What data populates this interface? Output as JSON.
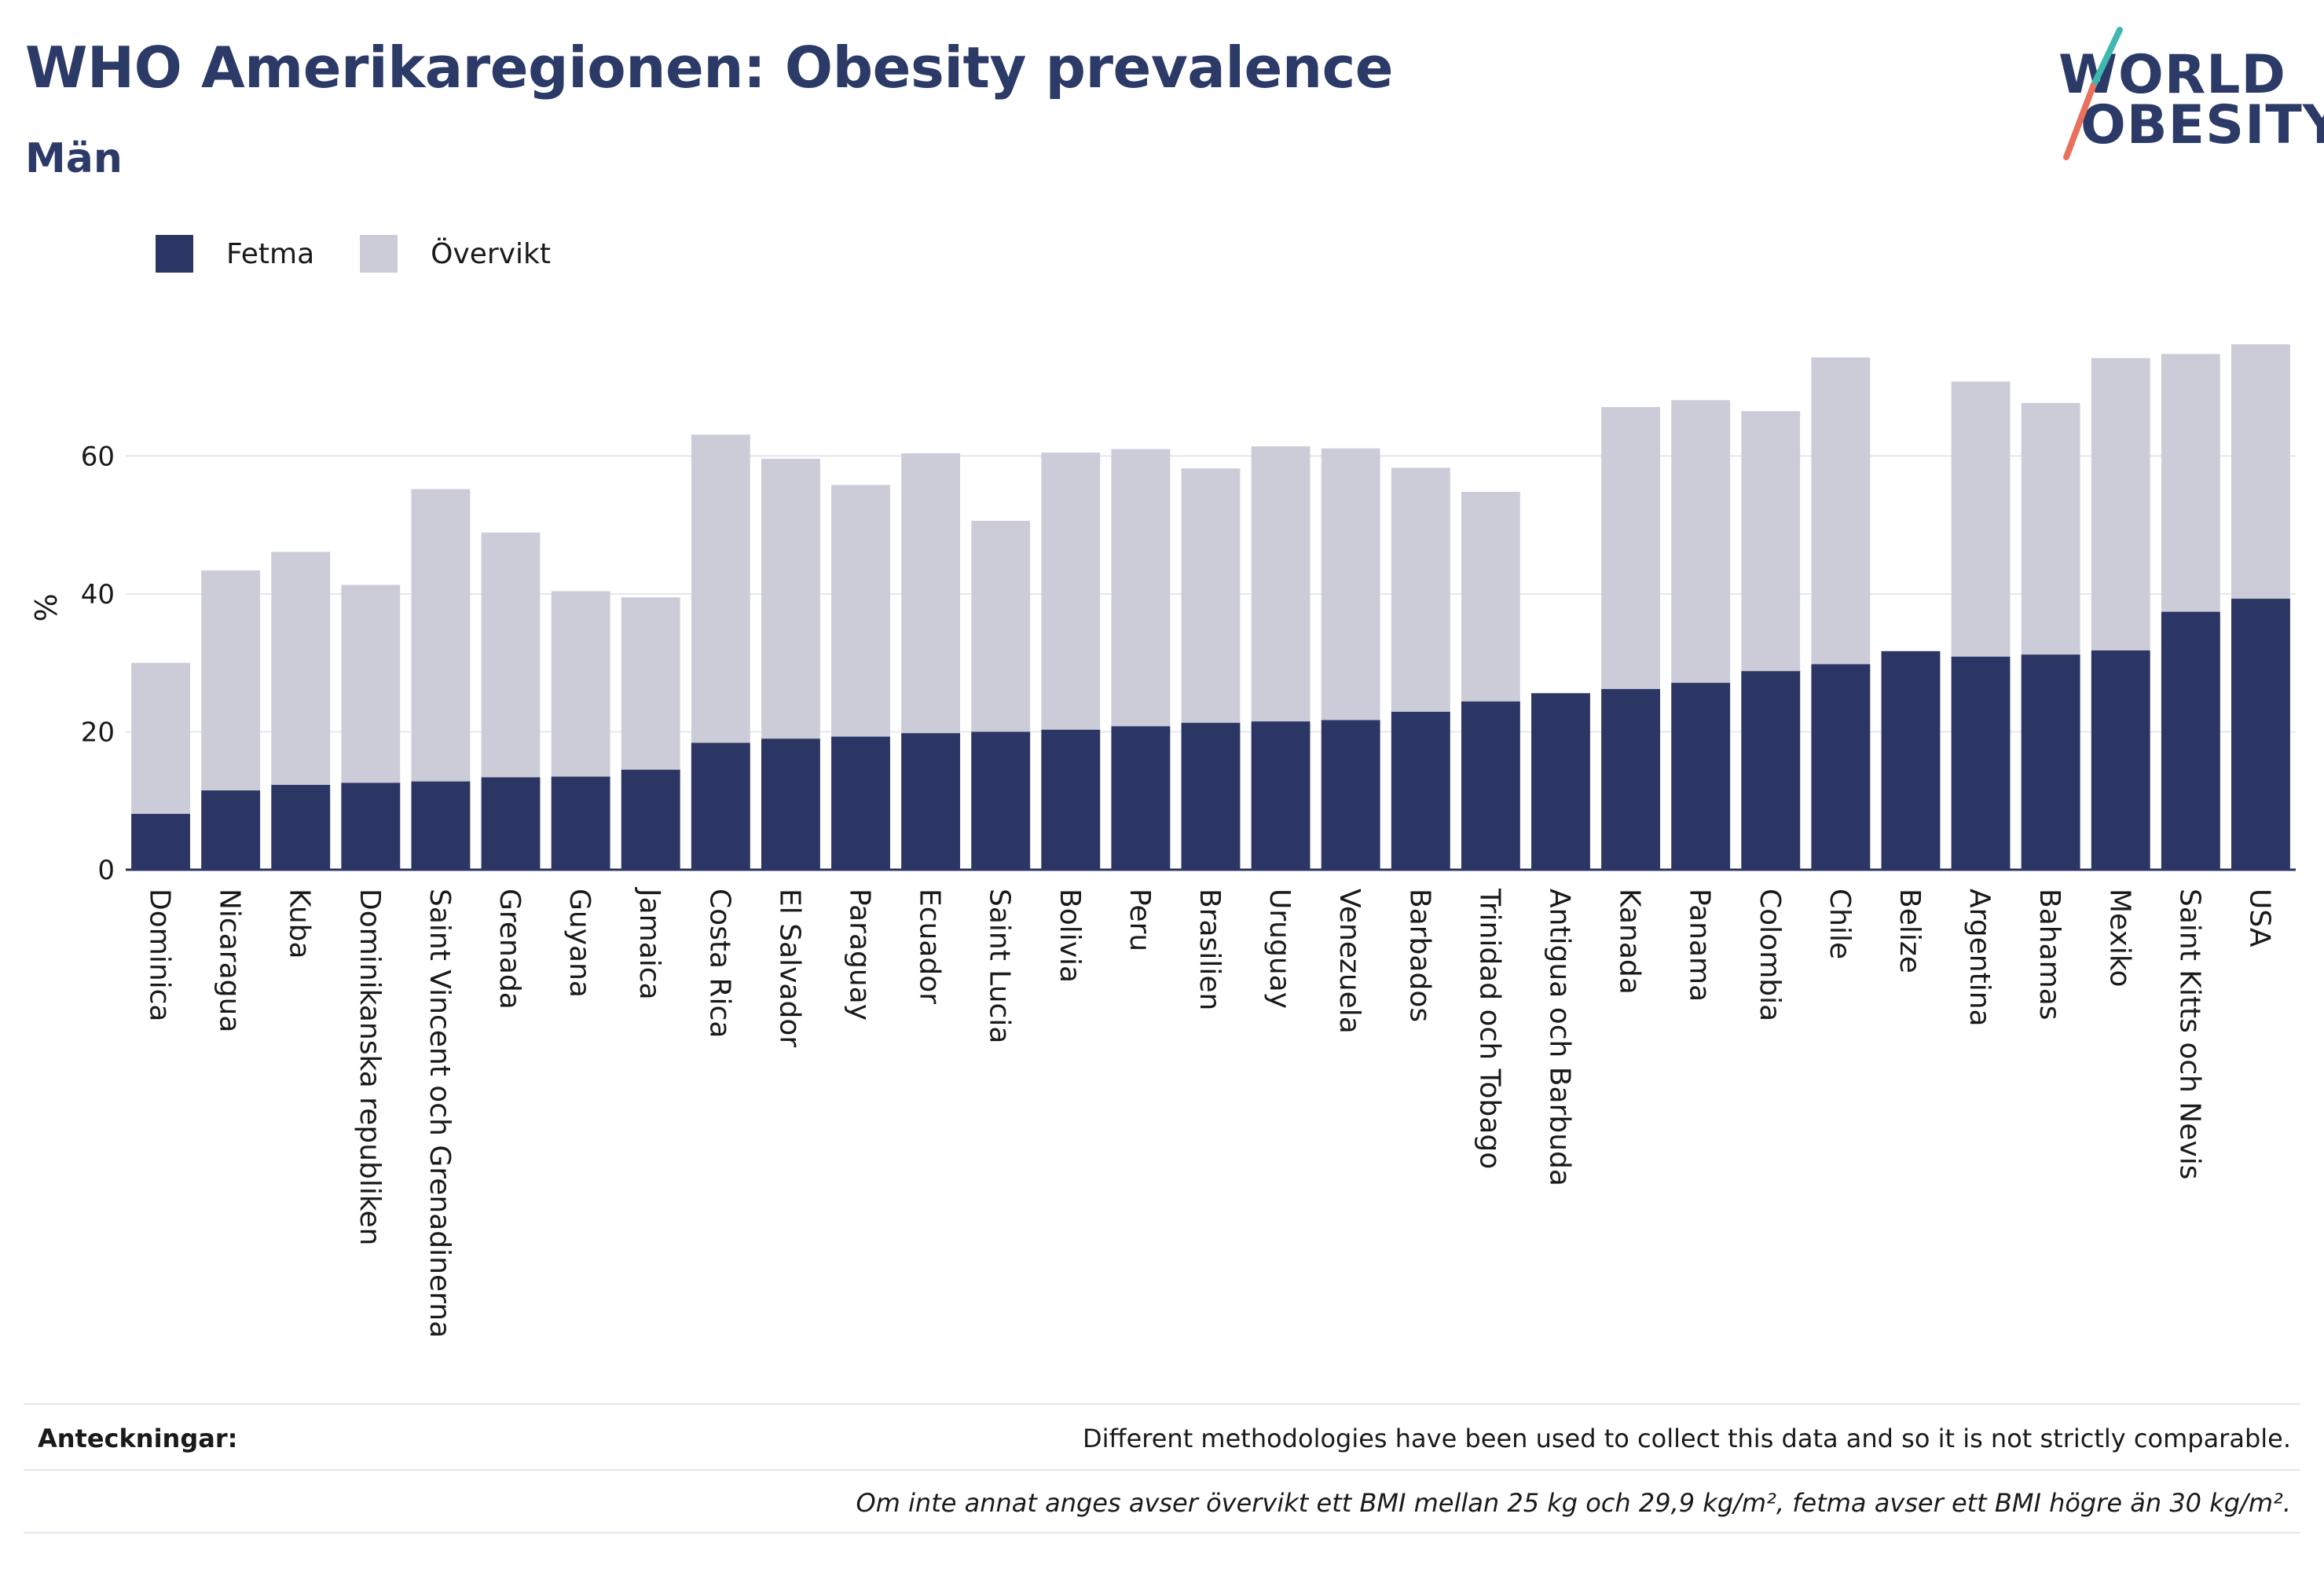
{
  "header": {
    "title": "WHO Amerikaregionen: Obesity prevalence",
    "subtitle": "Män"
  },
  "logo": {
    "line1": "WORLD",
    "line2": "OBESITY"
  },
  "legend": {
    "items": [
      {
        "label": "Fetma",
        "color": "#2b3664"
      },
      {
        "label": "Övervikt",
        "color": "#cbccd8"
      }
    ]
  },
  "notes": {
    "label": "Anteckningar:",
    "text": "Different methodologies have been used to collect this data and so it is not strictly comparable.",
    "footnote": "Om inte annat anges avser övervikt ett BMI mellan 25 kg och 29,9 kg/m², fetma avser ett BMI högre än 30 kg/m²."
  },
  "chart_data": {
    "type": "bar",
    "stacked": false,
    "overlaid": true,
    "ylabel": "%",
    "xlabel": "",
    "ylim": [
      0,
      76
    ],
    "yticks": [
      0,
      20,
      40,
      60
    ],
    "grid": true,
    "legend_position": "top-left",
    "categories": [
      "Dominica",
      "Nicaragua",
      "Kuba",
      "Dominikanska republiken",
      "Saint Vincent och Grenadinerna",
      "Grenada",
      "Guyana",
      "Jamaica",
      "Costa Rica",
      "El Salvador",
      "Paraguay",
      "Ecuador",
      "Saint Lucia",
      "Bolivia",
      "Peru",
      "Brasilien",
      "Uruguay",
      "Venezuela",
      "Barbados",
      "Trinidad och Tobago",
      "Antigua och Barbuda",
      "Kanada",
      "Panama",
      "Colombia",
      "Chile",
      "Belize",
      "Argentina",
      "Bahamas",
      "Mexiko",
      "Saint Kitts och Nevis",
      "USA"
    ],
    "series": [
      {
        "name": "Övervikt",
        "color": "#cbccd8",
        "values": [
          30.0,
          43.4,
          46.1,
          41.3,
          55.2,
          48.9,
          40.4,
          39.5,
          63.1,
          59.6,
          55.8,
          60.4,
          50.6,
          60.5,
          61.0,
          58.2,
          61.4,
          61.1,
          58.3,
          54.8,
          null,
          67.1,
          68.1,
          66.5,
          74.3,
          null,
          70.8,
          67.7,
          74.2,
          74.8,
          76.2
        ]
      },
      {
        "name": "Fetma",
        "color": "#2b3664",
        "values": [
          8.1,
          11.5,
          12.3,
          12.6,
          12.8,
          13.4,
          13.5,
          14.5,
          18.4,
          19.0,
          19.3,
          19.8,
          20.0,
          20.3,
          20.8,
          21.3,
          21.5,
          21.7,
          22.9,
          24.4,
          25.6,
          26.2,
          27.1,
          28.8,
          29.8,
          31.7,
          30.9,
          31.2,
          31.8,
          37.4,
          39.3
        ]
      }
    ]
  }
}
